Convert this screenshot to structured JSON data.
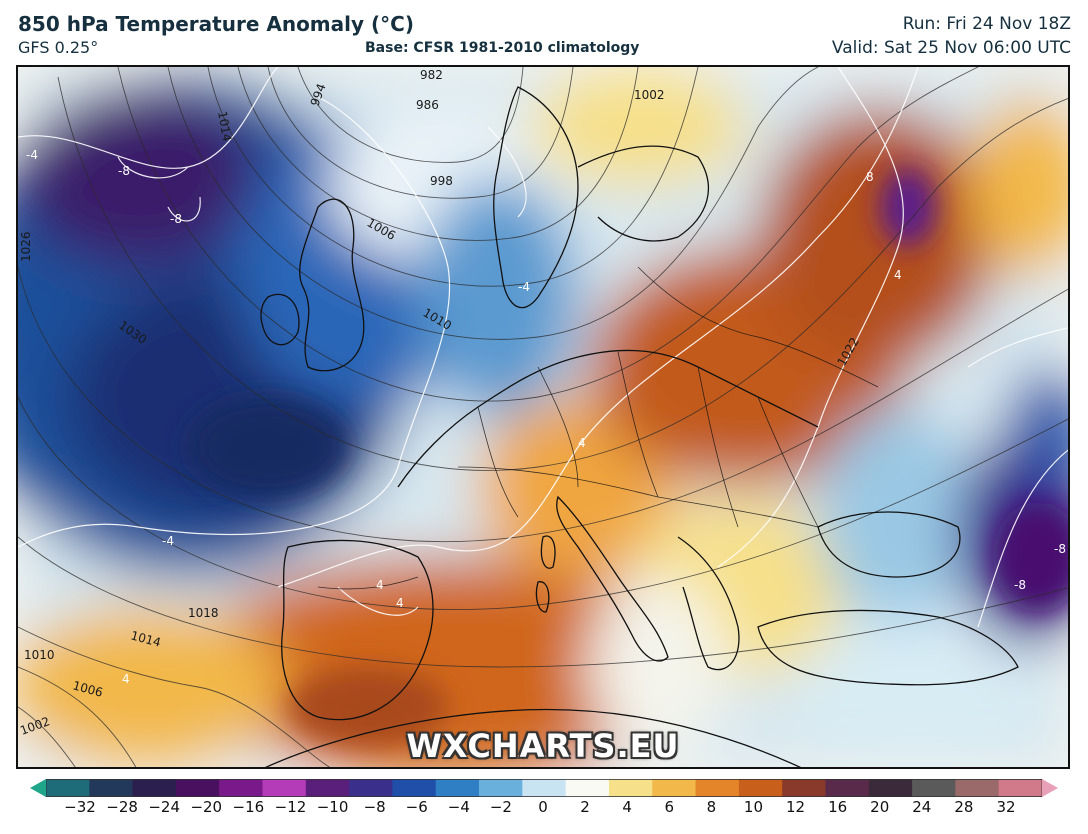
{
  "header": {
    "title": "850 hPa Temperature Anomaly (°C)",
    "model": "GFS 0.25°",
    "base": "Base: CFSR 1981-2010 climatology",
    "run": "Run: Fri 24 Nov 18Z",
    "valid": "Valid: Sat 25 Nov 06:00 UTC"
  },
  "watermark": "WXCHARTS.EU",
  "isobar_labels": [
    "982",
    "986",
    "994",
    "998",
    "1002",
    "1006",
    "1010",
    "1014",
    "1018",
    "1022",
    "1026",
    "1030",
    "1002",
    "1006",
    "1010",
    "1014"
  ],
  "anomaly_labels": [
    "-4",
    "-8",
    "-8",
    "-4",
    "-4",
    "4",
    "4",
    "8",
    "4",
    "-8",
    "-8",
    "4",
    "4"
  ],
  "legend": {
    "ticks": [
      "−32",
      "−28",
      "−24",
      "−20",
      "−16",
      "−12",
      "−10",
      "−8",
      "−6",
      "−4",
      "−2",
      "0",
      "2",
      "4",
      "6",
      "8",
      "10",
      "12",
      "16",
      "20",
      "24",
      "28",
      "32"
    ],
    "colors": [
      "#1fa68a",
      "#1e6b7a",
      "#23395c",
      "#2b1f4f",
      "#4a1060",
      "#7a1a8a",
      "#b43cb8",
      "#5a1f7a",
      "#3a2f8a",
      "#1f4fa8",
      "#2f7fc4",
      "#6ab0dc",
      "#c8e4f2",
      "#fafaf4",
      "#f6e08a",
      "#f2b84a",
      "#e5852a",
      "#c8601c",
      "#8a3a2a",
      "#5a2a4a",
      "#3a2a3a",
      "#5a5a5a",
      "#9a6a6a",
      "#d07a8a",
      "#e8a0b8"
    ]
  }
}
